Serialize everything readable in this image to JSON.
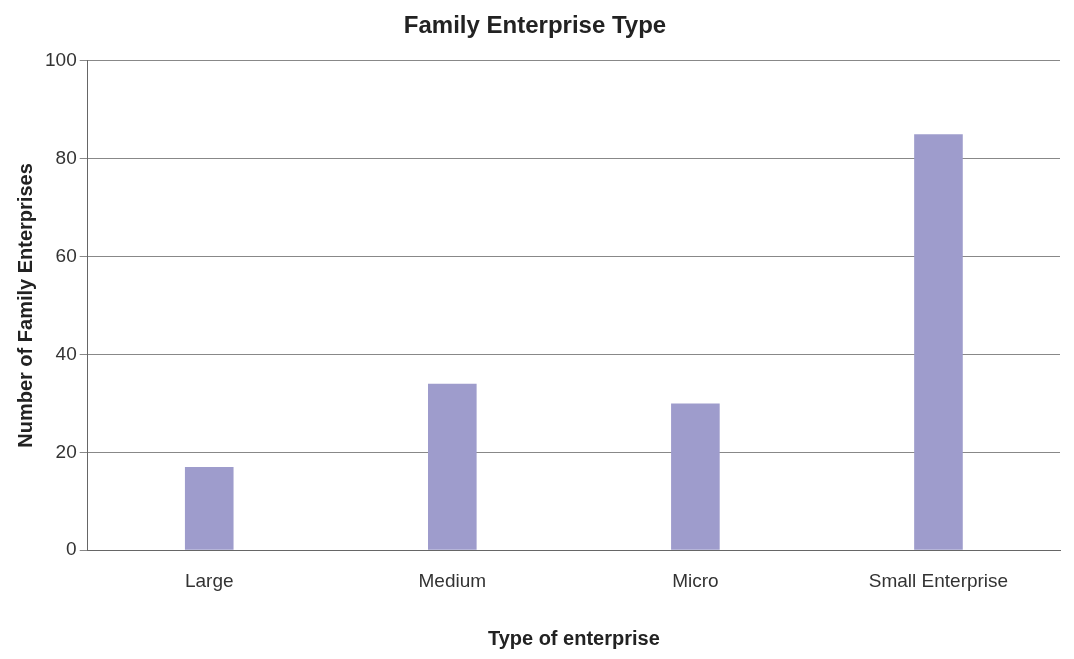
{
  "chart_data": {
    "type": "bar",
    "title": "Family Enterprise Type",
    "xlabel": "Type of enterprise",
    "ylabel": "Number of Family Enterprises",
    "categories": [
      "Large",
      "Medium",
      "Micro",
      "Small Enterprise"
    ],
    "values": [
      17,
      34,
      30,
      85
    ],
    "color": "#9e9ccc",
    "ylim": [
      0,
      100
    ],
    "yticks": [
      0,
      20,
      40,
      60,
      80,
      100
    ],
    "grid": "y",
    "legend": false
  }
}
